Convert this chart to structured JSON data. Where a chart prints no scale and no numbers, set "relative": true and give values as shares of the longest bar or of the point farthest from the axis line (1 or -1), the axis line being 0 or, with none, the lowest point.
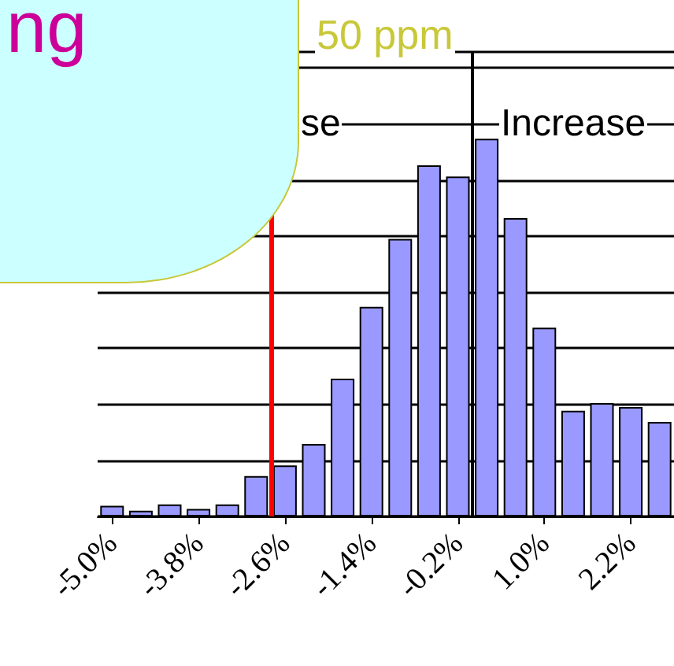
{
  "chart_data": {
    "type": "bar",
    "relative": true,
    "x": [
      -5.0,
      -4.6,
      -4.2,
      -3.8,
      -3.4,
      -3.0,
      -2.6,
      -2.2,
      -1.8,
      -1.4,
      -1.0,
      -0.6,
      -0.2,
      0.2,
      0.6,
      1.0,
      1.4,
      1.8,
      2.2,
      2.6
    ],
    "values": [
      0.028,
      0.015,
      0.032,
      0.02,
      0.032,
      0.107,
      0.135,
      0.192,
      0.365,
      0.555,
      0.735,
      0.93,
      0.9,
      1,
      0.79,
      0.5,
      0.28,
      0.3,
      0.29,
      0.25
    ],
    "color": "#9999ff",
    "xlim": [
      -5.2,
      2.8
    ],
    "xticks": [
      {
        "value": -5.0,
        "label": "-5.0%"
      },
      {
        "value": -3.8,
        "label": "-3.8%"
      },
      {
        "value": -2.6,
        "label": "-2.6%"
      },
      {
        "value": -1.4,
        "label": "-1.4%"
      },
      {
        "value": -0.2,
        "label": "-0.2%"
      },
      {
        "value": 1.0,
        "label": "1.0%"
      },
      {
        "value": 2.2,
        "label": "2.2%"
      }
    ],
    "ref_lines": [
      {
        "axis": "x",
        "value": -2.8,
        "color": "#ff0000"
      },
      {
        "axis": "x",
        "value": 0,
        "color": "#000000"
      }
    ],
    "annotations": [
      "ng",
      "50 ppm",
      "se",
      "Increase"
    ],
    "grid": "y"
  }
}
